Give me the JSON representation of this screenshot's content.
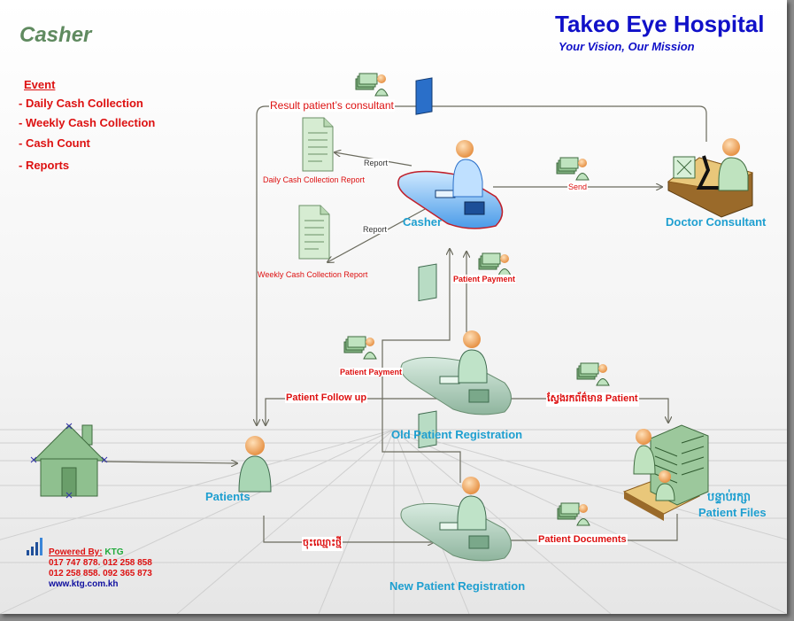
{
  "header": {
    "page_title": "Casher",
    "brand": "Takeo Eye Hospital",
    "tagline": "Your Vision, Our Mission"
  },
  "events": {
    "heading": "Event",
    "items": [
      "- Daily Cash Collection",
      "- Weekly Cash Collection",
      "- Cash Count",
      "- Reports"
    ]
  },
  "nodes": {
    "casher": "Casher",
    "doctor": "Doctor Consultant",
    "old_reg": "Old Patient Registration",
    "new_reg": "New Patient Registration",
    "patients": "Patients",
    "files_km": "បន្ទាប់រក្សា",
    "files_en": "Patient Files"
  },
  "documents": {
    "daily": "Daily Cash Collection Report",
    "weekly": "Weekly Cash Collection Report"
  },
  "flows": {
    "result": "Result patient’s consultant",
    "report1": "Report",
    "report2": "Report",
    "send": "Send",
    "payment_top": "Patient Payment",
    "payment_left": "Patient Payment",
    "follow_up": "Patient Follow up",
    "search_info": "ស្វែងរកព័ត៌មាន Patient",
    "register_new": "ចុះឈ្មោះថ្មី",
    "patient_documents": "Patient Documents"
  },
  "footer": {
    "powered_label": "Powered By:",
    "brand": "KTG",
    "phone1": "017 747 878. 012 258 858",
    "phone2": "012 258 858. 092 365 873",
    "website": "www.ktg.com.kh"
  },
  "colors": {
    "title_green": "#5f8a5f",
    "brand_blue": "#1010c8",
    "label_red": "#dd1111",
    "label_blue": "#1e9fd0",
    "connector": "#6b6b5e"
  }
}
